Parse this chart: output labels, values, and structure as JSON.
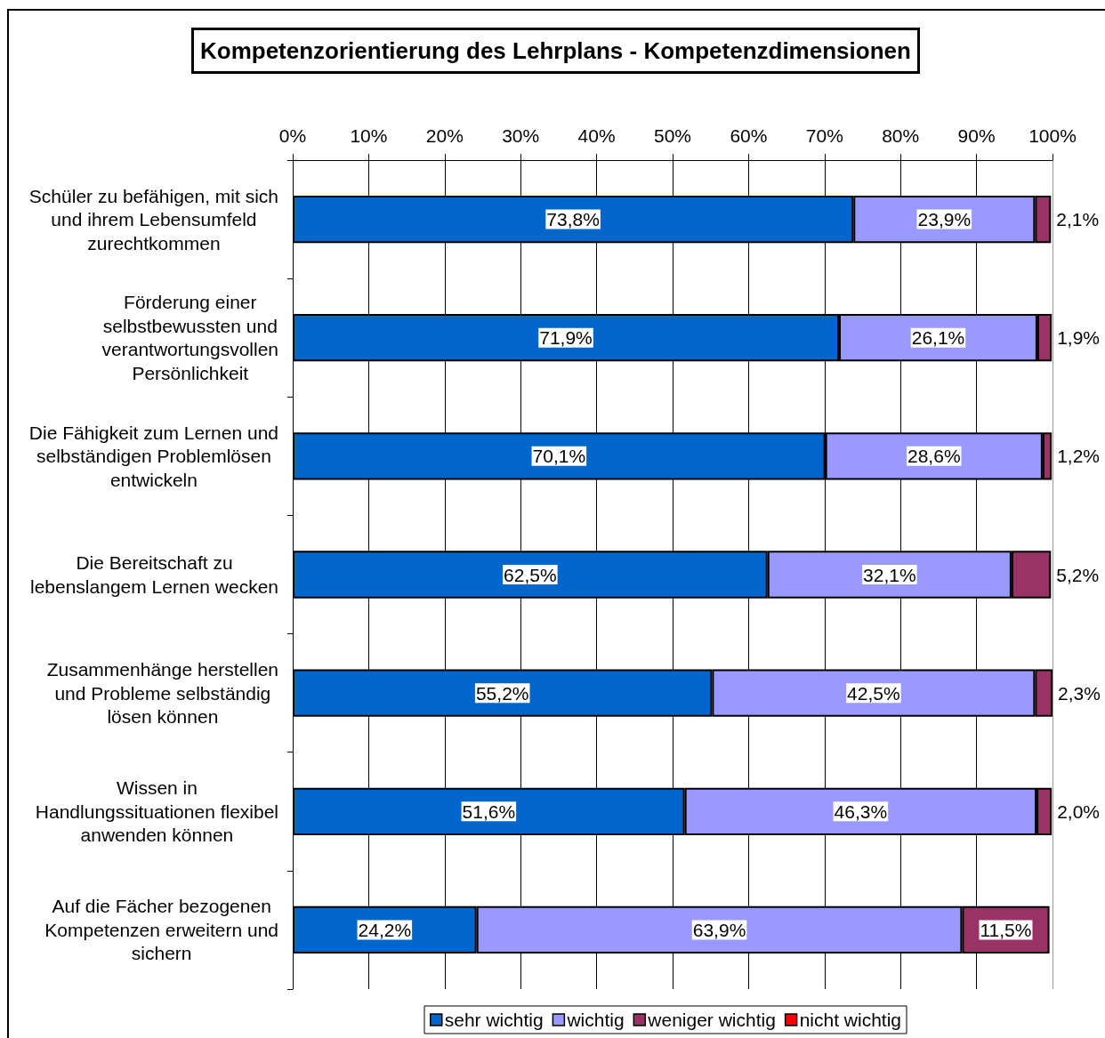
{
  "chart_data": {
    "type": "bar",
    "orientation": "horizontal",
    "stacked": true,
    "title": "Kompetenzorientierung des Lehrplans - Kompetenzdimensionen",
    "categories": [
      "Schüler zu befähigen, mit sich und ihrem Lebensumfeld zurechtkommen",
      "Förderung einer selbstbewussten und verantwortungsvollen Persönlichkeit",
      "Die Fähigkeit zum Lernen und selbständigen Problemlösen entwickeln",
      "Die Bereitschaft zu lebenslangem Lernen wecken",
      "Zusammenhänge herstellen und Probleme selbständig lösen können",
      "Wissen in Handlungssituationen flexibel anwenden können",
      "Auf die Fächer bezogenen Kompetenzen erweitern und sichern"
    ],
    "series": [
      {
        "name": "sehr wichtig",
        "color": "#0066cc",
        "values": [
          73.8,
          71.9,
          70.1,
          62.5,
          55.2,
          51.6,
          24.2
        ],
        "value_labels": [
          "73,8%",
          "71,9%",
          "70,1%",
          "62,5%",
          "55,2%",
          "51,6%",
          "24,2%"
        ]
      },
      {
        "name": "wichtig",
        "color": "#9999ff",
        "values": [
          23.9,
          26.1,
          28.6,
          32.1,
          42.5,
          46.3,
          63.9
        ],
        "value_labels": [
          "23,9%",
          "26,1%",
          "28,6%",
          "32,1%",
          "42,5%",
          "46,3%",
          "63,9%"
        ]
      },
      {
        "name": "weniger wichtig",
        "color": "#993366",
        "values": [
          2.1,
          1.9,
          1.2,
          5.2,
          2.3,
          2.0,
          11.5
        ],
        "value_labels": [
          "2,1%",
          "1,9%",
          "1,2%",
          "5,2%",
          "2,3%",
          "2,0%",
          "11,5%"
        ]
      },
      {
        "name": "nicht wichtig",
        "color": "#ff0000",
        "values": [
          null,
          null,
          null,
          null,
          null,
          null,
          null
        ]
      }
    ],
    "xlim": [
      0,
      100
    ],
    "xticks": [
      {
        "value": 0,
        "label": "0%"
      },
      {
        "value": 10,
        "label": "10%"
      },
      {
        "value": 20,
        "label": "20%"
      },
      {
        "value": 30,
        "label": "30%"
      },
      {
        "value": 40,
        "label": "40%"
      },
      {
        "value": 50,
        "label": "50%"
      },
      {
        "value": 60,
        "label": "60%"
      },
      {
        "value": 70,
        "label": "70%"
      },
      {
        "value": 80,
        "label": "80%"
      },
      {
        "value": 90,
        "label": "90%"
      },
      {
        "value": 100,
        "label": "100%"
      }
    ],
    "grid": "x",
    "legend": "bottom"
  }
}
